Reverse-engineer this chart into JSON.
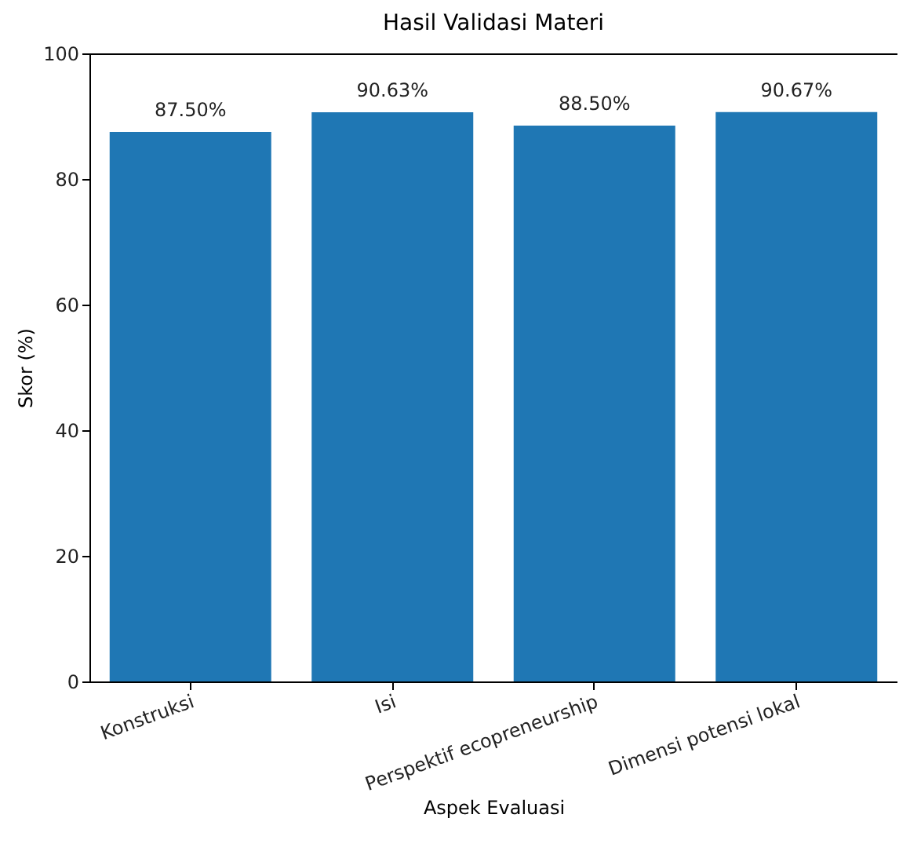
{
  "chart_data": {
    "type": "bar",
    "title": "Hasil Validasi Materi",
    "xlabel": "Aspek Evaluasi",
    "ylabel": "Skor (%)",
    "categories": [
      "Konstruksi",
      "Isi",
      "Perspektif ecopreneurship",
      "Dimensi potensi lokal"
    ],
    "values": [
      87.5,
      90.63,
      88.5,
      90.67
    ],
    "value_labels": [
      "87.50%",
      "90.63%",
      "88.50%",
      "90.67%"
    ],
    "color": "#1f77b4",
    "ylim": [
      0,
      100
    ],
    "yticks": [
      0,
      20,
      40,
      60,
      80,
      100
    ],
    "grid": false
  }
}
